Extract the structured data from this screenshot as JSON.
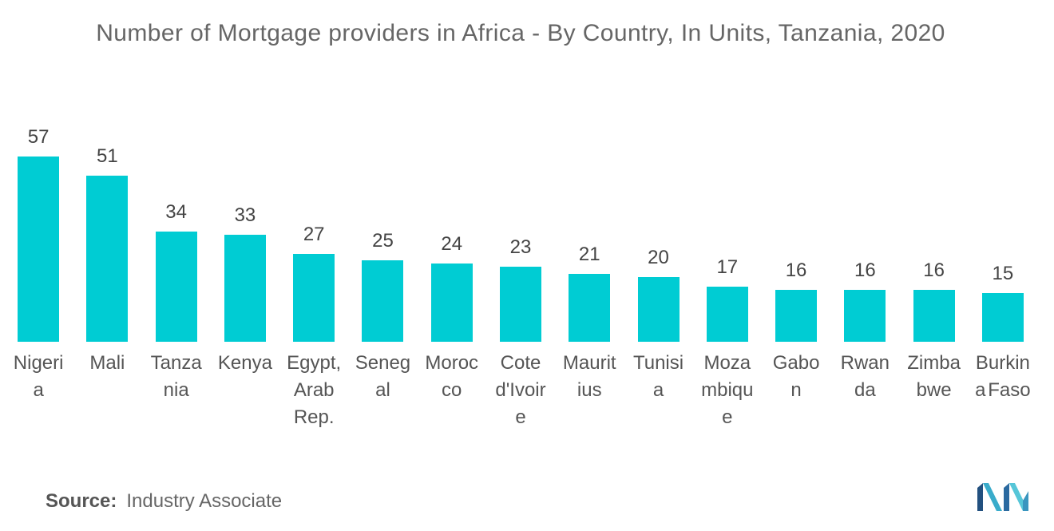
{
  "colors": {
    "bar": "#00ccd3"
  },
  "chart_data": {
    "type": "bar",
    "title": "Number of Mortgage providers in Africa - By Country, In Units, Tanzania, 2020",
    "categories": [
      "Nigeria",
      "Mali",
      "Tanzania",
      "Kenya",
      "Egypt, Arab Rep.",
      "Senegal",
      "Morocco",
      "Cote d'Ivoire",
      "Mauritius",
      "Tunisia",
      "Mozambique",
      "Gabon",
      "Rwanda",
      "Zimbabwe",
      "Burkina Faso"
    ],
    "values": [
      57,
      51,
      34,
      33,
      27,
      25,
      24,
      23,
      21,
      20,
      17,
      16,
      16,
      16,
      15
    ],
    "xlabel": "",
    "ylabel": "",
    "data_labels": true,
    "grid": false,
    "legend": "none"
  },
  "source": {
    "label": "Source:",
    "value": "Industry Associate"
  },
  "logo": {
    "icon": "brand-logo-icon"
  }
}
